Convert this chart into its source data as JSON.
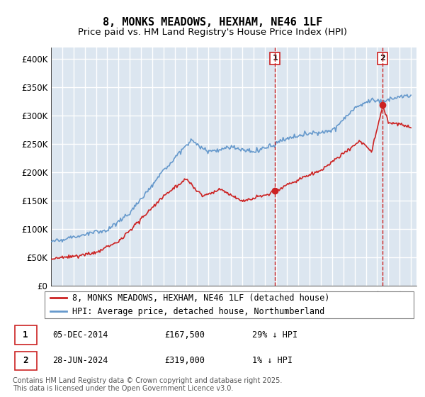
{
  "title": "8, MONKS MEADOWS, HEXHAM, NE46 1LF",
  "subtitle": "Price paid vs. HM Land Registry's House Price Index (HPI)",
  "ylabel_ticks": [
    "£0",
    "£50K",
    "£100K",
    "£150K",
    "£200K",
    "£250K",
    "£300K",
    "£350K",
    "£400K"
  ],
  "ytick_values": [
    0,
    50000,
    100000,
    150000,
    200000,
    250000,
    300000,
    350000,
    400000
  ],
  "ylim": [
    0,
    420000
  ],
  "xlim_start": 1995.0,
  "xlim_end": 2027.5,
  "hpi_color": "#6699cc",
  "price_color": "#cc2222",
  "vline_color": "#cc2222",
  "bg_color": "#dce6f0",
  "grid_color": "#ffffff",
  "transaction1_x": 2014.92,
  "transaction1_y": 167500,
  "transaction1_label": "1",
  "transaction2_x": 2024.49,
  "transaction2_y": 319000,
  "transaction2_label": "2",
  "legend_line1": "8, MONKS MEADOWS, HEXHAM, NE46 1LF (detached house)",
  "legend_line2": "HPI: Average price, detached house, Northumberland",
  "table_entries": [
    {
      "num": "1",
      "date": "05-DEC-2014",
      "price": "£167,500",
      "hpi": "29% ↓ HPI"
    },
    {
      "num": "2",
      "date": "28-JUN-2024",
      "price": "£319,000",
      "hpi": "1% ↓ HPI"
    }
  ],
  "footer": "Contains HM Land Registry data © Crown copyright and database right 2025.\nThis data is licensed under the Open Government Licence v3.0.",
  "title_fontsize": 11,
  "subtitle_fontsize": 9.5,
  "tick_fontsize": 8.5,
  "legend_fontsize": 8.5,
  "table_fontsize": 8.5,
  "footer_fontsize": 7
}
